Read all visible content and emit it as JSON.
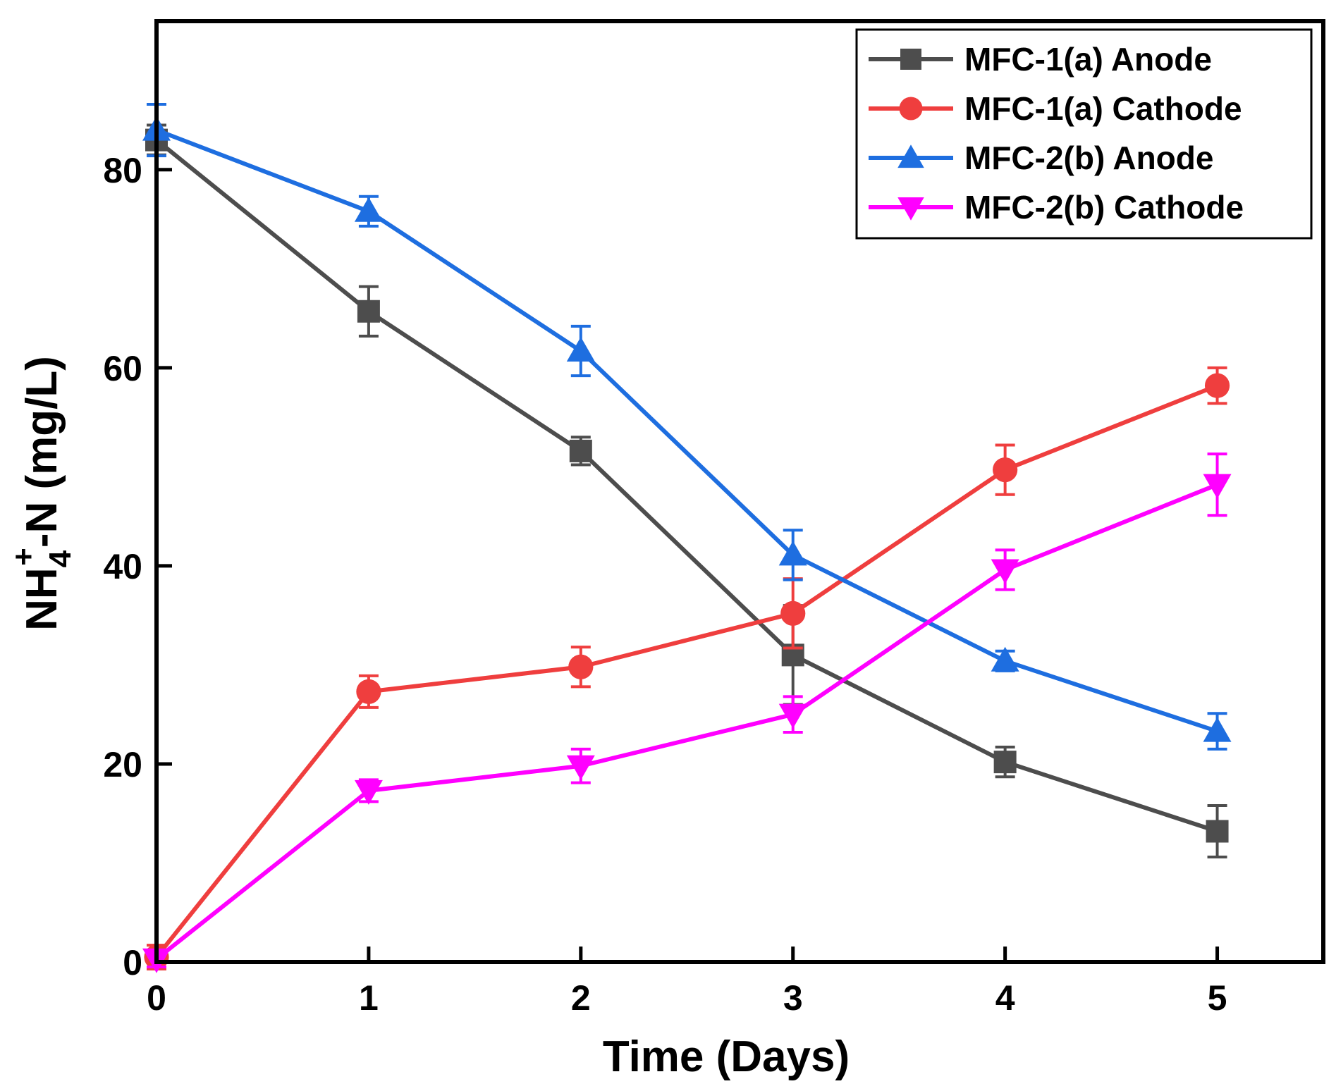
{
  "chart_data": {
    "type": "line",
    "title": "",
    "xlabel": "Time (Days)",
    "ylabel": {
      "base": "NH",
      "subscript": "4",
      "superscript": "+",
      "rest": "-N (mg/L)"
    },
    "xlim": [
      0,
      5.5
    ],
    "ylim": [
      0,
      95
    ],
    "xticks": [
      0,
      1,
      2,
      3,
      4,
      5
    ],
    "yticks": [
      0,
      20,
      40,
      60,
      80
    ],
    "grid": false,
    "legend_position": "top-right",
    "series": [
      {
        "name": "MFC-1(a) Anode",
        "color": "#4d4d4d",
        "marker": "square",
        "x": [
          0,
          1,
          2,
          3,
          4,
          5
        ],
        "y": [
          83.0,
          65.7,
          51.6,
          31.0,
          20.2,
          13.2
        ],
        "err": [
          1.5,
          2.5,
          1.4,
          5.0,
          1.5,
          2.6
        ]
      },
      {
        "name": "MFC-1(a) Cathode",
        "color": "#ef3e3e",
        "marker": "circle",
        "x": [
          0,
          1,
          2,
          3,
          4,
          5
        ],
        "y": [
          0.5,
          27.3,
          29.8,
          35.2,
          49.7,
          58.2
        ],
        "err": [
          1.2,
          1.6,
          2.0,
          3.5,
          2.5,
          1.8
        ]
      },
      {
        "name": "MFC-2(b) Anode",
        "color": "#1e6ee0",
        "marker": "triangle-up",
        "x": [
          0,
          1,
          2,
          3,
          4,
          5
        ],
        "y": [
          84.0,
          75.8,
          61.7,
          41.1,
          30.4,
          23.3
        ],
        "err": [
          2.6,
          1.5,
          2.5,
          2.5,
          1.0,
          1.8
        ]
      },
      {
        "name": "MFC-2(b) Cathode",
        "color": "#ff00ff",
        "marker": "triangle-down",
        "x": [
          0,
          1,
          2,
          3,
          4,
          5
        ],
        "y": [
          0.3,
          17.3,
          19.8,
          25.0,
          39.6,
          48.2
        ],
        "err": [
          0.8,
          1.1,
          1.7,
          1.8,
          2.0,
          3.1
        ]
      }
    ]
  }
}
